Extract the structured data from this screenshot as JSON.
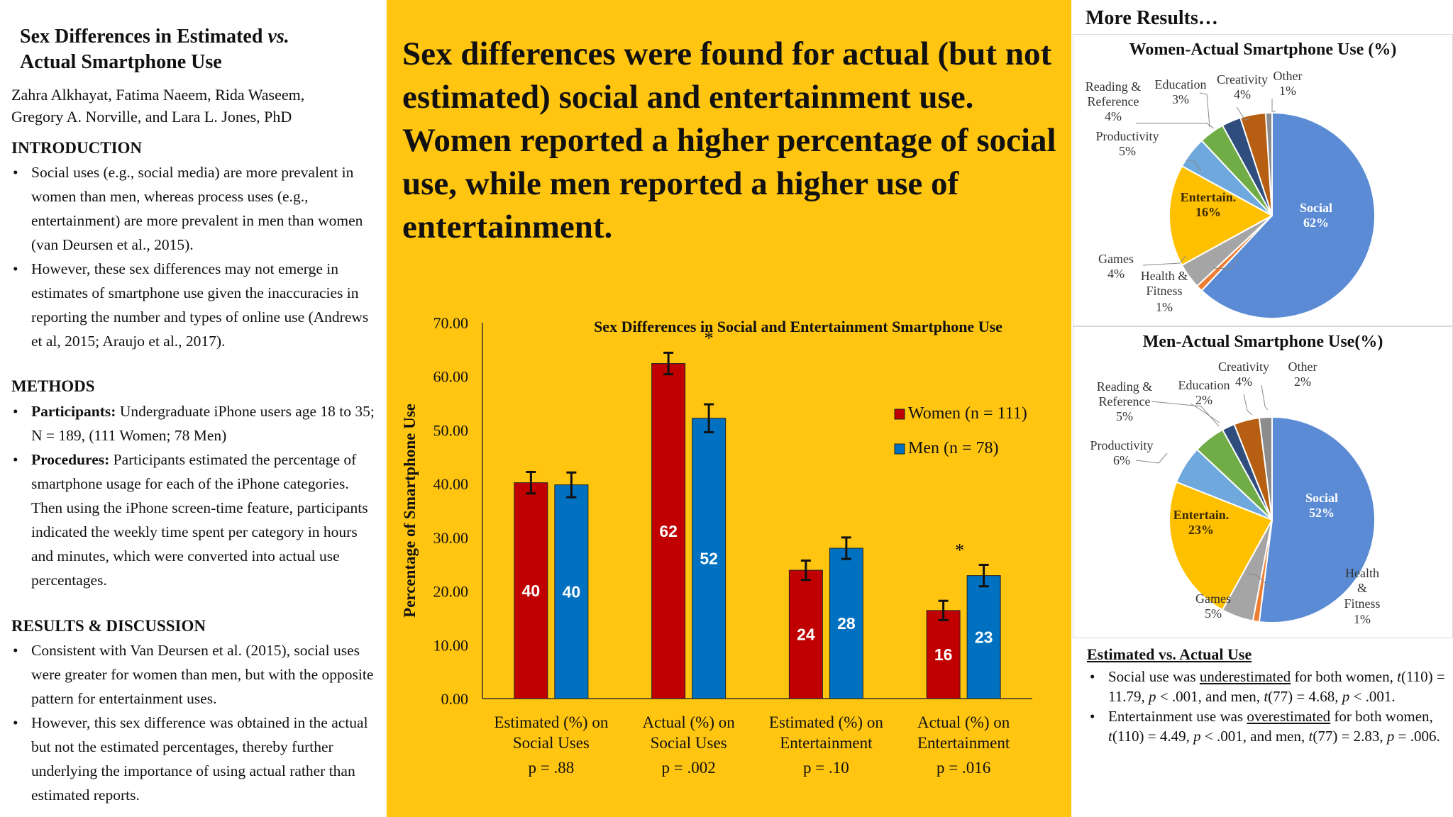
{
  "left": {
    "title_line1": "Sex Differences in Estimated ",
    "title_vs": "vs.",
    "title_line2": "Actual Smartphone Use",
    "authors_line1": "Zahra Alkhayat, Fatima Naeem, Rida Waseem,",
    "authors_line2": "Gregory A. Norville, and Lara L. Jones, PhD",
    "intro_heading": "INTRODUCTION",
    "intro_bullets": [
      "Social uses (e.g., social media) are more prevalent in women than men, whereas process uses (e.g., entertainment) are more prevalent in men than women (van Deursen et al., 2015).",
      "However, these sex differences may not emerge in estimates of smartphone use given the inaccuracies in reporting the number and types of online use (Andrews et al, 2015; Araujo et al., 2017)."
    ],
    "methods_heading": "METHODS",
    "methods_participants_label": "Participants:",
    "methods_participants_text": " Undergraduate iPhone users age 18 to 35; N = 189, (111 Women; 78 Men)",
    "methods_procedures_label": "Procedures:",
    "methods_procedures_text": " Participants estimated the percentage of smartphone usage for each of the iPhone categories. Then using the iPhone screen-time feature, participants indicated the weekly time spent per category in hours and minutes, which were converted into actual use percentages.",
    "results_heading": "RESULTS & DISCUSSION",
    "results_bullets": [
      "Consistent with Van Deursen et al. (2015), social uses were greater for women than men, but  with the opposite pattern for entertainment uses.",
      "However, this sex difference was obtained in the actual but not the estimated percentages, thereby further underlying the importance of using actual rather than estimated reports."
    ]
  },
  "headline": "Sex differences were found for actual (but not estimated) social and entertainment use. Women reported a higher percentage of social use, while men reported a higher use of entertainment.",
  "chart_data": [
    {
      "type": "bar",
      "title": "Sex Differences in Social and Entertainment Smartphone Use",
      "ylabel": "Percentage of Smartphone Use",
      "xlabel": "",
      "ylim": [
        0,
        70
      ],
      "yticks": [
        "0.00",
        "10.00",
        "20.00",
        "30.00",
        "40.00",
        "50.00",
        "60.00",
        "70.00"
      ],
      "categories": [
        [
          "Estimated (%) on",
          "Social Uses"
        ],
        [
          "Actual (%) on",
          "Social Uses"
        ],
        [
          "Estimated (%) on",
          "Entertainment"
        ],
        [
          "Actual (%) on",
          "Entertainment"
        ]
      ],
      "p_values": [
        "p = .88",
        "p = .002",
        "p = .10",
        "p = .016"
      ],
      "significance": [
        "",
        "*",
        "",
        "*"
      ],
      "series": [
        {
          "name": "Women (n = 111)",
          "color": "#C00000",
          "values": [
            40.2,
            62.4,
            23.9,
            16.4
          ],
          "labels": [
            "40",
            "62",
            "24",
            "16"
          ],
          "error": [
            2.0,
            2.0,
            1.8,
            1.8
          ]
        },
        {
          "name": "Men (n = 78)",
          "color": "#0070C0",
          "values": [
            39.8,
            52.2,
            28.0,
            22.9
          ],
          "labels": [
            "40",
            "52",
            "28",
            "23"
          ],
          "error": [
            2.3,
            2.6,
            2.0,
            2.0
          ]
        }
      ],
      "legend_position": "right",
      "grid": false
    },
    {
      "type": "pie",
      "title": "Women-Actual Smartphone Use (%)",
      "slices": [
        {
          "name": "Social",
          "value": 62,
          "label": "62%",
          "color": "#5B8BD4"
        },
        {
          "name": "Health & Fitness",
          "value": 1,
          "label": "1%",
          "color": "#ED7D31"
        },
        {
          "name": "Games",
          "value": 4,
          "label": "4%",
          "color": "#A5A5A5"
        },
        {
          "name": "Entertain.",
          "value": 16,
          "label": "16%",
          "color": "#FFC000"
        },
        {
          "name": "Productivity",
          "value": 5,
          "label": "5%",
          "color": "#6FA8DC"
        },
        {
          "name": "Reading & Reference",
          "value": 4,
          "label": "4%",
          "color": "#70AD47"
        },
        {
          "name": "Education",
          "value": 3,
          "label": "3%",
          "color": "#2F4E7E"
        },
        {
          "name": "Creativity",
          "value": 4,
          "label": "4%",
          "color": "#B65F13"
        },
        {
          "name": "Other",
          "value": 1,
          "label": "1%",
          "color": "#8C8C8C"
        }
      ]
    },
    {
      "type": "pie",
      "title": "Men-Actual Smartphone Use(%)",
      "slices": [
        {
          "name": "Social",
          "value": 52,
          "label": "52%",
          "color": "#5B8BD4"
        },
        {
          "name": "Health & Fitness",
          "value": 1,
          "label": "1%",
          "color": "#ED7D31"
        },
        {
          "name": "Games",
          "value": 5,
          "label": "5%",
          "color": "#A5A5A5"
        },
        {
          "name": "Entertain.",
          "value": 23,
          "label": "23%",
          "color": "#FFC000"
        },
        {
          "name": "Productivity",
          "value": 6,
          "label": "6%",
          "color": "#6FA8DC"
        },
        {
          "name": "Reading & Reference",
          "value": 5,
          "label": "5%",
          "color": "#70AD47"
        },
        {
          "name": "Education",
          "value": 2,
          "label": "2%",
          "color": "#2F4E7E"
        },
        {
          "name": "Creativity",
          "value": 4,
          "label": "4%",
          "color": "#B65F13"
        },
        {
          "name": "Other",
          "value": 2,
          "label": "2%",
          "color": "#8C8C8C"
        }
      ]
    }
  ],
  "right": {
    "more_results": "More Results…",
    "women_pie_labels": {
      "reading1": "Reading &",
      "reading2": "Reference",
      "reading3": "4%",
      "education1": "Education",
      "education2": "3%",
      "creativity1": "Creativity",
      "creativity2": "4%",
      "other1": "Other",
      "other2": "1%",
      "productivity1": "Productivity",
      "productivity2": "5%",
      "entertain1": "Entertain.",
      "entertain2": "16%",
      "social1": "Social",
      "social2": "62%",
      "games1": "Games",
      "games2": "4%",
      "health1": "Health &",
      "health2": "Fitness",
      "health3": "1%"
    },
    "men_pie_labels": {
      "creativity1": "Creativity",
      "creativity2": "4%",
      "other1": "Other",
      "other2": "2%",
      "reading1": "Reading &",
      "reading2": "Reference",
      "reading3": "5%",
      "education1": "Education",
      "education2": "2%",
      "productivity1": "Productivity",
      "productivity2": "6%",
      "entertain1": "Entertain.",
      "entertain2": "23%",
      "social1": "Social",
      "social2": "52%",
      "health1": "Health",
      "health2": "&",
      "health3": "Fitness",
      "health4": "1%",
      "games1": "Games",
      "games2": "5%"
    },
    "eva_heading": "Estimated vs. Actual Use",
    "eva_b1_a": "Social use was ",
    "eva_b1_u": "underestimated",
    "eva_b1_b": " for both women, ",
    "eva_b1_c": "t",
    "eva_b1_d": "(110) = 11.79, ",
    "eva_b1_e": "p",
    "eva_b1_f": " < .001, and men, ",
    "eva_b1_g": "t",
    "eva_b1_h": "(77) = 4.68, ",
    "eva_b1_i": "p",
    "eva_b1_j": " < .001.",
    "eva_b2_a": "Entertainment use was ",
    "eva_b2_u": "overestimated",
    "eva_b2_b": " for both women, ",
    "eva_b2_c": "t",
    "eva_b2_d": "(110) = 4.49, ",
    "eva_b2_e": "p",
    "eva_b2_f": " < .001, and men, ",
    "eva_b2_g": "t",
    "eva_b2_h": "(77) = 2.83, ",
    "eva_b2_i": "p",
    "eva_b2_j": " = .006."
  }
}
